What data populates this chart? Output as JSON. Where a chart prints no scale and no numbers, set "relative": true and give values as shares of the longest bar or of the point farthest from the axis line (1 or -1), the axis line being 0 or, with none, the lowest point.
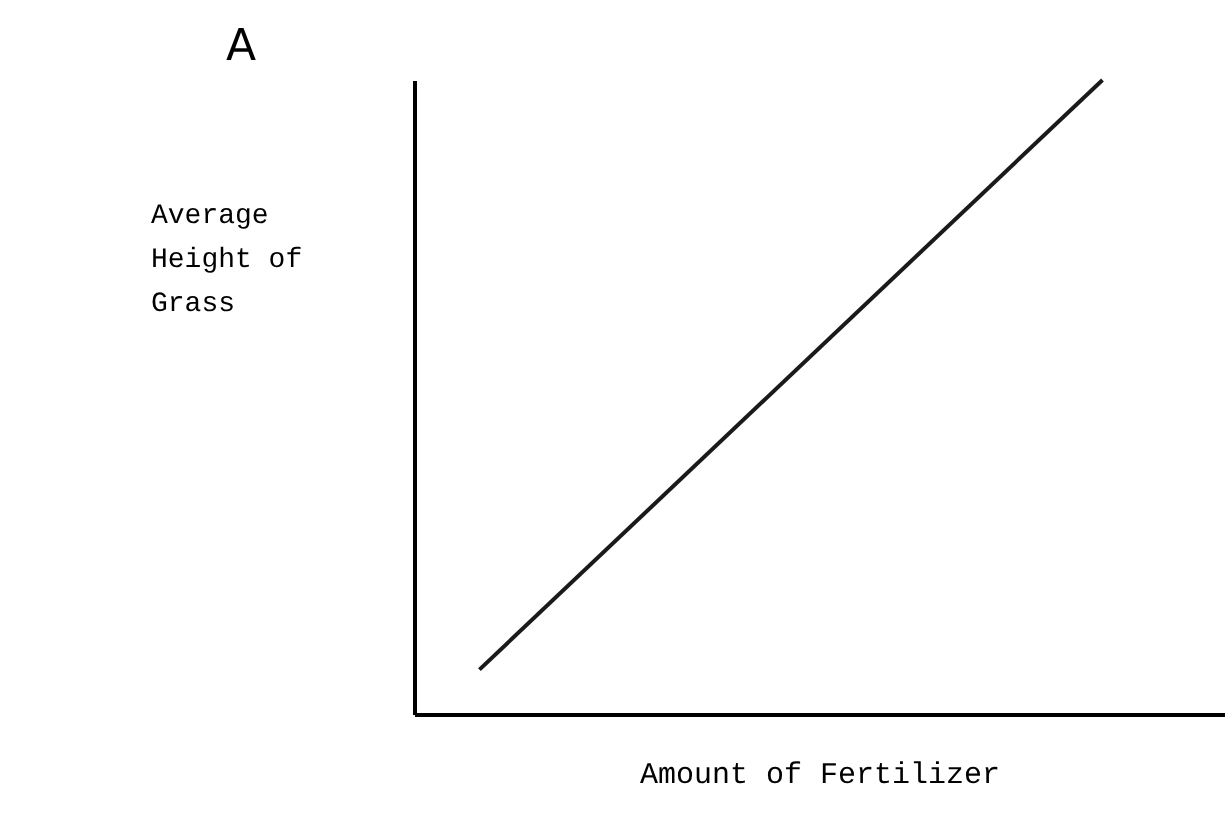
{
  "chart_data": {
    "type": "line",
    "title": "A",
    "xlabel": "Amount of Fertilizer",
    "ylabel": "Average Height of Grass",
    "relative": true,
    "categories": [
      null,
      null
    ],
    "series": [
      {
        "color": "#1a1a1a",
        "values": [
          0.07,
          1
        ]
      }
    ],
    "marker": "none",
    "line_style": "solid",
    "grid": false,
    "tick_labels": false
  }
}
